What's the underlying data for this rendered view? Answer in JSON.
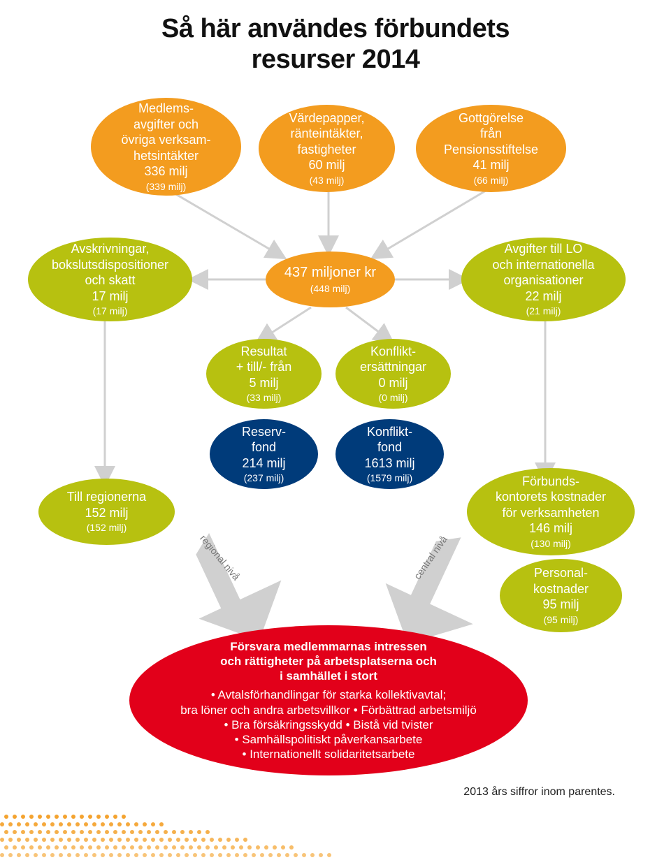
{
  "title_line1": "Så här användes förbundets",
  "title_line2": "resurser 2014",
  "colors": {
    "orange": "#f39c1f",
    "olive": "#b7c110",
    "red": "#e2001a",
    "navy": "#003b7a",
    "arrow_gray": "#d0d0d0",
    "text_gray": "#808080"
  },
  "nodes": {
    "n1": {
      "l1": "Medlems-",
      "l2": "avgifter och",
      "l3": "övriga verksam-",
      "l4": "hetsintäkter",
      "val": "336 milj",
      "sub": "(339 milj)"
    },
    "n2": {
      "l1": "Värdepapper,",
      "l2": "ränteintäkter,",
      "l3": "fastigheter",
      "val": "60 milj",
      "sub": "(43 milj)"
    },
    "n3": {
      "l1": "Gottgörelse",
      "l2": "från",
      "l3": "Pensionsstiftelse",
      "val": "41 milj",
      "sub": "(66 milj)"
    },
    "n4": {
      "l1": "Avskrivningar,",
      "l2": "bokslutsdispositioner",
      "l3": "och skatt",
      "val": "17 milj",
      "sub": "(17 milj)"
    },
    "n5": {
      "l1": "437 miljoner kr",
      "sub": "(448 milj)"
    },
    "n6": {
      "l1": "Avgifter till LO",
      "l2": "och internationella",
      "l3": "organisationer",
      "val": "22 milj",
      "sub": "(21 milj)"
    },
    "n7": {
      "l1": "Resultat",
      "l2": "+ till/- från",
      "val": "5 milj",
      "sub": "(33 milj)"
    },
    "n8": {
      "l1": "Konflikt-",
      "l2": "ersättningar",
      "val": "0 milj",
      "sub": "(0 milj)"
    },
    "n9": {
      "l1": "Reserv-",
      "l2": "fond",
      "val": "214 milj",
      "sub": "(237 milj)"
    },
    "n10": {
      "l1": "Konflikt-",
      "l2": "fond",
      "val": "1613 milj",
      "sub": "(1579 milj)"
    },
    "n11": {
      "l1": "Till regionerna",
      "val": "152 milj",
      "sub": "(152 milj)"
    },
    "n12": {
      "l1": "Förbunds-",
      "l2": "kontorets kostnader",
      "l3": "för verksamheten",
      "val": "146 milj",
      "sub": "(130 milj)"
    },
    "n13": {
      "l1": "Personal-",
      "l2": "kostnader",
      "val": "95 milj",
      "sub": "(95 milj)"
    }
  },
  "big": {
    "heading_l1": "Försvara medlemmarnas intressen",
    "heading_l2": "och rättigheter på arbetsplatserna och",
    "heading_l3": "i samhället i stort",
    "b1": "• Avtalsförhandlingar för starka kollektivavtal;",
    "b2": "bra löner och andra arbetsvillkor • Förbättrad arbetsmiljö",
    "b3": "• Bra försäkringsskydd • Bistå vid tvister",
    "b4": "• Samhällspolitiskt påverkansarbete",
    "b5": "• Internationellt solidaritetsarbete"
  },
  "labels": {
    "regional": "regional nivå",
    "central": "central nivå"
  },
  "footnote": "2013 års siffror inom parentes."
}
